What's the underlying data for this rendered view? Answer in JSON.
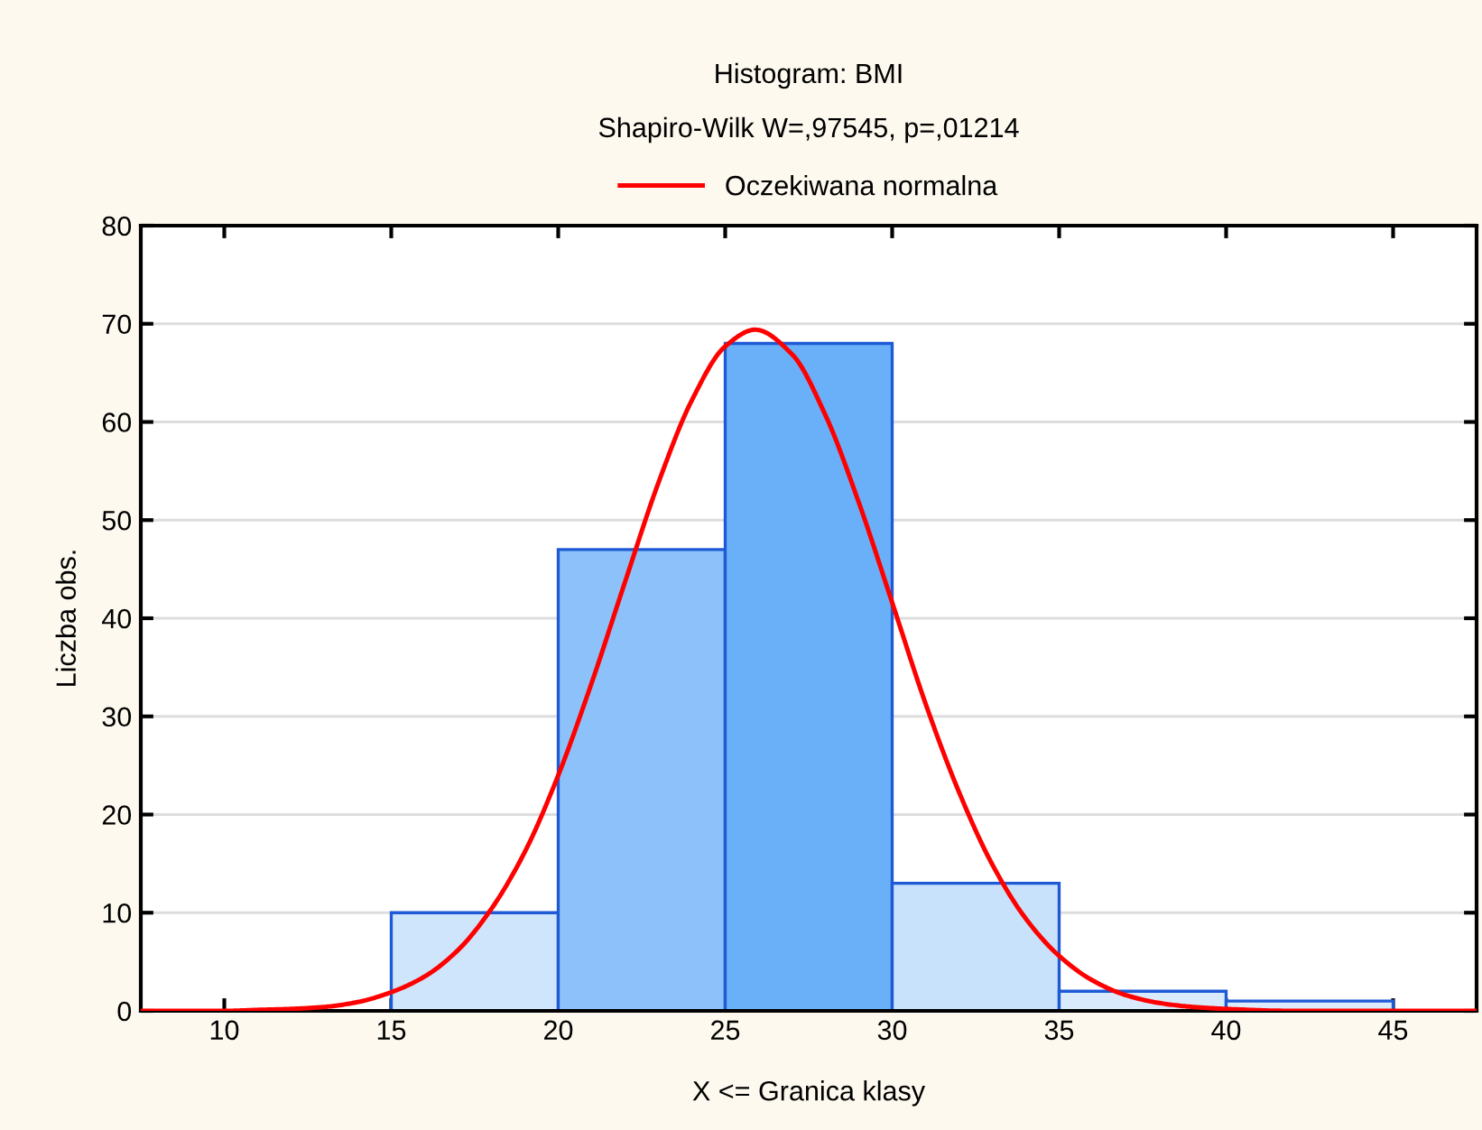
{
  "chart_data": {
    "type": "histogram",
    "title": "Histogram: BMI",
    "subtitle": "Shapiro-Wilk W=,97545, p=,01214",
    "xlabel": "X <= Granica klasy",
    "ylabel": "Liczba obs.",
    "bins": [
      10,
      15,
      20,
      25,
      30,
      35,
      40,
      45
    ],
    "values": [
      0,
      10,
      47,
      68,
      13,
      2,
      1
    ],
    "colors": [
      "#1f5ad6",
      "#cfe5fb",
      "#8cc2f9",
      "#6ab0f8",
      "#c8e2fb",
      "#d8eafc",
      "#dcecfc"
    ],
    "series": [
      {
        "type": "line",
        "name": "Oczekiwana normalna",
        "color": "#ff0000",
        "x": [
          7.5,
          9,
          10,
          11,
          12,
          13,
          14,
          15,
          16,
          17,
          18,
          19,
          20,
          21,
          22,
          23,
          24,
          25,
          25.9,
          27,
          28,
          29,
          30,
          31,
          32,
          33,
          34,
          35,
          36,
          37,
          38,
          39,
          40,
          42,
          44,
          47.5
        ],
        "values": [
          0.0,
          0.0,
          0.0,
          0.1,
          0.2,
          0.4,
          0.9,
          1.9,
          3.5,
          6.2,
          10.4,
          16.2,
          24.0,
          33.4,
          43.7,
          53.8,
          62.2,
          67.7,
          69.4,
          66.9,
          60.7,
          51.8,
          41.6,
          31.3,
          22.3,
          14.9,
          9.4,
          5.6,
          3.1,
          1.6,
          0.8,
          0.4,
          0.2,
          0.0,
          0.0,
          0.0
        ]
      }
    ],
    "xlim": [
      7.5,
      47.5
    ],
    "xticks": [
      10,
      15,
      20,
      25,
      30,
      35,
      40,
      45
    ],
    "ylim": [
      0,
      80
    ],
    "yticks": [
      0,
      10,
      20,
      30,
      40,
      50,
      60,
      70,
      80
    ],
    "grid": "y",
    "legend": "top",
    "line_style": "solid",
    "marker": "none"
  }
}
